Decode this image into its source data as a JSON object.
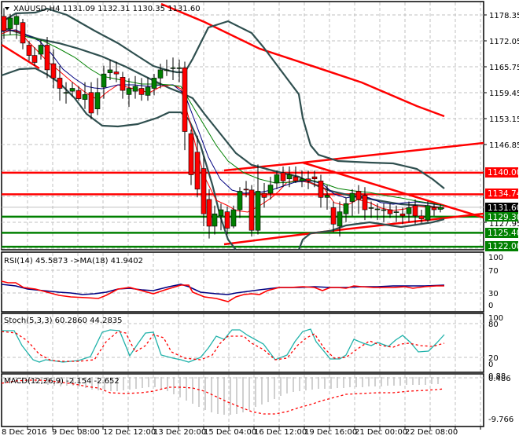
{
  "window": {
    "symbol_header": "XAUUSD,H4",
    "ohlc": "1131.09 1132.31 1130.35 1131.60",
    "header_full": "XAUUSD,H4  1131.09 1132.31 1130.35 1131.60"
  },
  "colors": {
    "background": "#ffffff",
    "grid": "#c0c0c0",
    "bull_candle": "#008000",
    "bear_candle": "#ff0000",
    "bollinger": "#2f4f4f",
    "sma_fast": "#ff0000",
    "sma_mid": "#000080",
    "sma_slow": "#008000",
    "resistance": "#ff0000",
    "support": "#008000",
    "rsi_line": "#ff0000",
    "rsi_ma": "#000080",
    "stoch_main": "#20b2aa",
    "stoch_signal": "#ff0000",
    "macd_hist": "#c0c0c0",
    "macd_signal": "#ff0000",
    "current_price_tag": "#000000"
  },
  "price_axis": {
    "ticks": [
      "1178.35",
      "1172.05",
      "1165.75",
      "1159.45",
      "1153.15",
      "1146.85",
      "1127.95"
    ],
    "tags": [
      {
        "label": "1140.00",
        "price": 1140.0,
        "kind": "resistance"
      },
      {
        "label": "1134.74",
        "price": 1134.74,
        "kind": "resistance"
      },
      {
        "label": "1131.60",
        "price": 1131.6,
        "kind": "current"
      },
      {
        "label": "1129.30",
        "price": 1129.3,
        "kind": "support"
      },
      {
        "label": "1125.40",
        "price": 1125.4,
        "kind": "support"
      },
      {
        "label": "1122.00",
        "price": 1122.0,
        "kind": "support"
      }
    ]
  },
  "rsi": {
    "title": "RSI(14) 45.5873  ->MA(18) 41.9402",
    "ticks": [
      "100",
      "70",
      "30",
      "0"
    ]
  },
  "stoch": {
    "title": "Stoch(5,3,3) 60.2860 44.2835",
    "ticks": [
      "100",
      "80",
      "20",
      "0"
    ]
  },
  "macd": {
    "title": "MACD(12,26,9) -2.154 -2.652",
    "ticks": [
      "0.88",
      "0.486",
      "-9.766"
    ]
  },
  "time_axis": {
    "labels": [
      "8 Dec 2016",
      "9 Dec 08:00",
      "12 Dec 12:00",
      "13 Dec 20:00",
      "15 Dec 04:00",
      "16 Dec 12:00",
      "19 Dec 16:00",
      "21 Dec 00:00",
      "22 Dec 08:00"
    ]
  },
  "chart_data": {
    "type": "candlestick",
    "title": "XAUUSD,H4",
    "ohlc_last": {
      "open": 1131.09,
      "high": 1132.31,
      "low": 1130.35,
      "close": 1131.6
    },
    "ylim": [
      1121.5,
      1182
    ],
    "horizontal_levels": [
      {
        "price": 1140.0,
        "color": "red"
      },
      {
        "price": 1134.74,
        "color": "red"
      },
      {
        "price": 1129.3,
        "color": "green"
      },
      {
        "price": 1125.4,
        "color": "green"
      },
      {
        "price": 1122.0,
        "color": "green"
      }
    ],
    "x_labels": [
      "8 Dec 2016",
      "9 Dec 08:00",
      "12 Dec 12:00",
      "13 Dec 20:00",
      "15 Dec 04:00",
      "16 Dec 12:00",
      "19 Dec 16:00",
      "21 Dec 00:00",
      "22 Dec 08:00"
    ],
    "indicators": {
      "rsi": {
        "period": 14,
        "value": 45.5873,
        "ma_period": 18,
        "ma_value": 41.9402,
        "levels": [
          70,
          30
        ]
      },
      "stochastic": {
        "params": [
          5,
          3,
          3
        ],
        "main": 60.286,
        "signal": 44.2835,
        "levels": [
          80,
          20
        ]
      },
      "macd": {
        "params": [
          12,
          26,
          9
        ],
        "main": -2.154,
        "signal": -2.652,
        "range": [
          -9.766,
          0.88
        ]
      }
    }
  }
}
